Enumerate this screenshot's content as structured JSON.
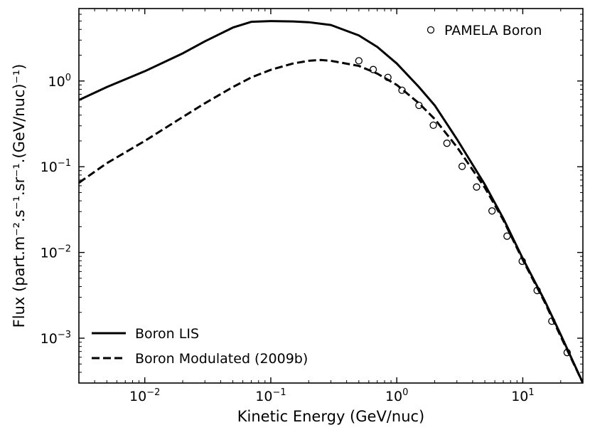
{
  "chart_data": {
    "type": "line",
    "xscale": "log",
    "yscale": "log",
    "xlabel": "Kinetic Energy (GeV/nuc)",
    "ylabel": "Flux (part.m⁻².s⁻¹.sr⁻¹.(GeV/nuc)⁻¹)",
    "xlim": [
      0.003,
      30
    ],
    "ylim": [
      0.0003,
      7
    ],
    "x_ticks": [
      {
        "value": 0.01,
        "base": "10",
        "exp": "−2"
      },
      {
        "value": 0.1,
        "base": "10",
        "exp": "−1"
      },
      {
        "value": 1,
        "base": "10",
        "exp": "0"
      },
      {
        "value": 10,
        "base": "10",
        "exp": "1"
      }
    ],
    "y_ticks": [
      {
        "value": 0.001,
        "base": "10",
        "exp": "−3"
      },
      {
        "value": 0.01,
        "base": "10",
        "exp": "−2"
      },
      {
        "value": 0.1,
        "base": "10",
        "exp": "−1"
      },
      {
        "value": 1,
        "base": "10",
        "exp": "0"
      }
    ],
    "series": [
      {
        "name": "Boron LIS",
        "style": "solid",
        "color": "#000000",
        "x": [
          0.003,
          0.005,
          0.01,
          0.02,
          0.03,
          0.05,
          0.07,
          0.1,
          0.15,
          0.2,
          0.3,
          0.5,
          0.7,
          1.0,
          1.5,
          2.0,
          3.0,
          5.0,
          7.0,
          10.0,
          15.0,
          20.0,
          30.0
        ],
        "y": [
          0.6,
          0.85,
          1.3,
          2.1,
          2.9,
          4.2,
          4.9,
          5.0,
          4.95,
          4.85,
          4.5,
          3.4,
          2.5,
          1.6,
          0.85,
          0.52,
          0.21,
          0.062,
          0.025,
          0.0085,
          0.0027,
          0.0011,
          0.0003
        ]
      },
      {
        "name": "Boron Modulated (2009b)",
        "style": "dashed",
        "color": "#000000",
        "x": [
          0.003,
          0.005,
          0.01,
          0.02,
          0.03,
          0.05,
          0.07,
          0.1,
          0.15,
          0.2,
          0.25,
          0.3,
          0.5,
          0.7,
          1.0,
          1.5,
          2.0,
          3.0,
          5.0,
          7.0,
          10.0,
          15.0,
          20.0,
          30.0
        ],
        "y": [
          0.065,
          0.11,
          0.2,
          0.38,
          0.55,
          0.85,
          1.1,
          1.35,
          1.6,
          1.72,
          1.76,
          1.72,
          1.5,
          1.22,
          0.9,
          0.55,
          0.36,
          0.17,
          0.057,
          0.024,
          0.0082,
          0.0026,
          0.00105,
          0.0003
        ]
      }
    ],
    "scatter": {
      "name": "PAMELA Boron",
      "marker": "open-circle",
      "x": [
        0.5,
        0.65,
        0.85,
        1.1,
        1.5,
        1.95,
        2.5,
        3.3,
        4.3,
        5.7,
        7.5,
        9.9,
        13.0,
        17.0,
        22.5
      ],
      "y": [
        1.72,
        1.36,
        1.1,
        0.78,
        0.52,
        0.305,
        0.188,
        0.101,
        0.058,
        0.0305,
        0.0155,
        0.0079,
        0.0036,
        0.00158,
        0.00068
      ]
    },
    "legends": [
      {
        "placement": "upper-right",
        "entries": [
          "PAMELA Boron"
        ]
      },
      {
        "placement": "lower-left",
        "entries": [
          "Boron LIS",
          "Boron Modulated (2009b)"
        ]
      }
    ]
  }
}
